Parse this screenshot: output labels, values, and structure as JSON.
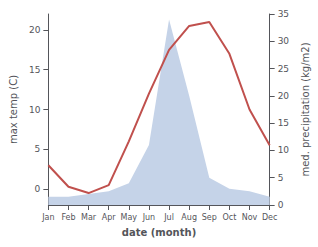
{
  "chart_data": {
    "type": "line",
    "xlabel": "date (month)",
    "ylabel": "max temp (C)",
    "y2label": "med. precipitation (kg/m2)",
    "categories": [
      "Jan",
      "Feb",
      "Mar",
      "Apr",
      "May",
      "Jun",
      "Jul",
      "Aug",
      "Sep",
      "Oct",
      "Nov",
      "Dec"
    ],
    "series": [
      {
        "type": "area",
        "axis": "y2",
        "color": "#c5d3e8",
        "values": [
          1.5,
          1.5,
          2.0,
          2.5,
          4.0,
          11.0,
          34.0,
          20.0,
          5.0,
          3.0,
          2.5,
          1.5
        ]
      },
      {
        "type": "line",
        "color": "#c0504d",
        "values": [
          3.0,
          0.3,
          -0.5,
          0.5,
          6.0,
          12.0,
          17.5,
          20.5,
          21.0,
          17.0,
          10.0,
          5.5
        ]
      }
    ],
    "ylim": [
      -2,
      22
    ],
    "yticks": [
      0,
      5,
      10,
      15,
      20
    ],
    "y2lim": [
      0,
      35
    ],
    "y2ticks": [
      0,
      5,
      10,
      15,
      20,
      25,
      30,
      35
    ],
    "grid": false
  }
}
